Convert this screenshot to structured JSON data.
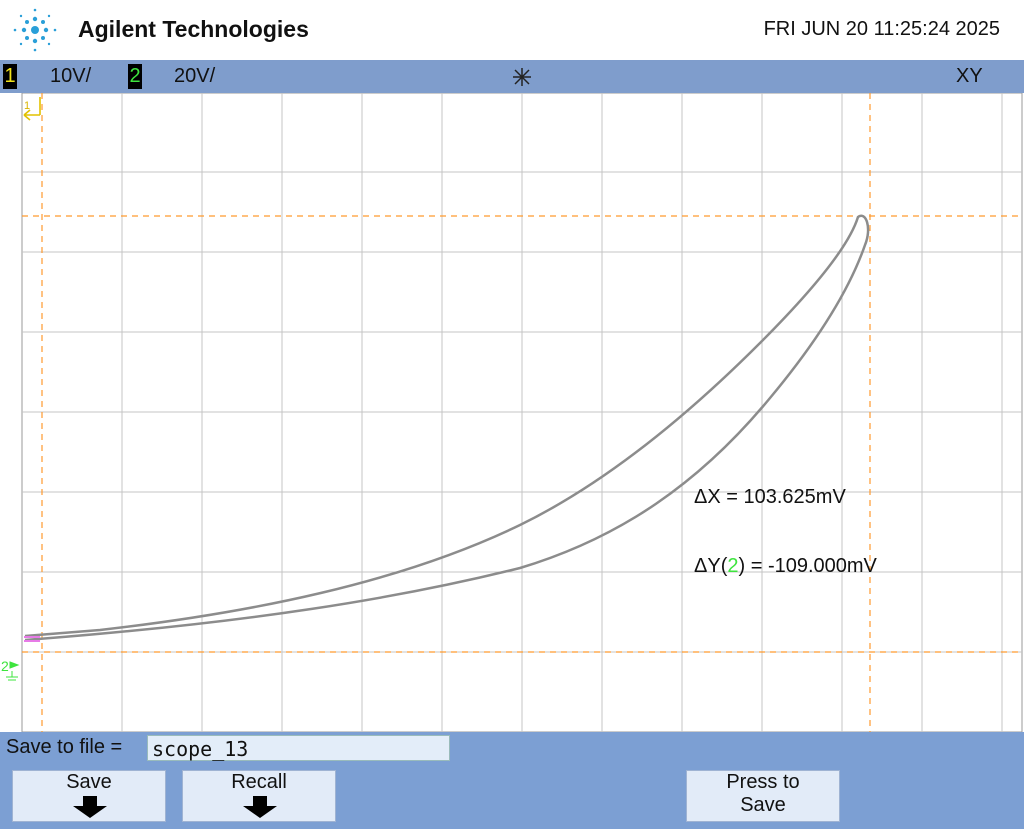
{
  "header": {
    "brand": "Agilent Technologies",
    "datetime": "FRI JUN 20 11:25:24 2025"
  },
  "status_bar": {
    "channel_1": {
      "label": "1",
      "scale": "10V/"
    },
    "channel_2": {
      "label": "2",
      "scale": "20V/"
    },
    "mode": "XY"
  },
  "markers": {
    "channel_1": "1",
    "channel_2": "2"
  },
  "measurements": {
    "delta_x": "ΔX = 103.625mV",
    "delta_y": {
      "prefix": "ΔY(",
      "channel": "2",
      "suffix": ") = -109.000mV"
    }
  },
  "save_panel": {
    "label": "Save to file =",
    "filename": "scope_13",
    "buttons": [
      {
        "label": [
          "Save"
        ]
      },
      {
        "label": [
          "Recall"
        ]
      },
      {
        "label": [
          "Press to",
          "Save"
        ]
      }
    ]
  }
}
